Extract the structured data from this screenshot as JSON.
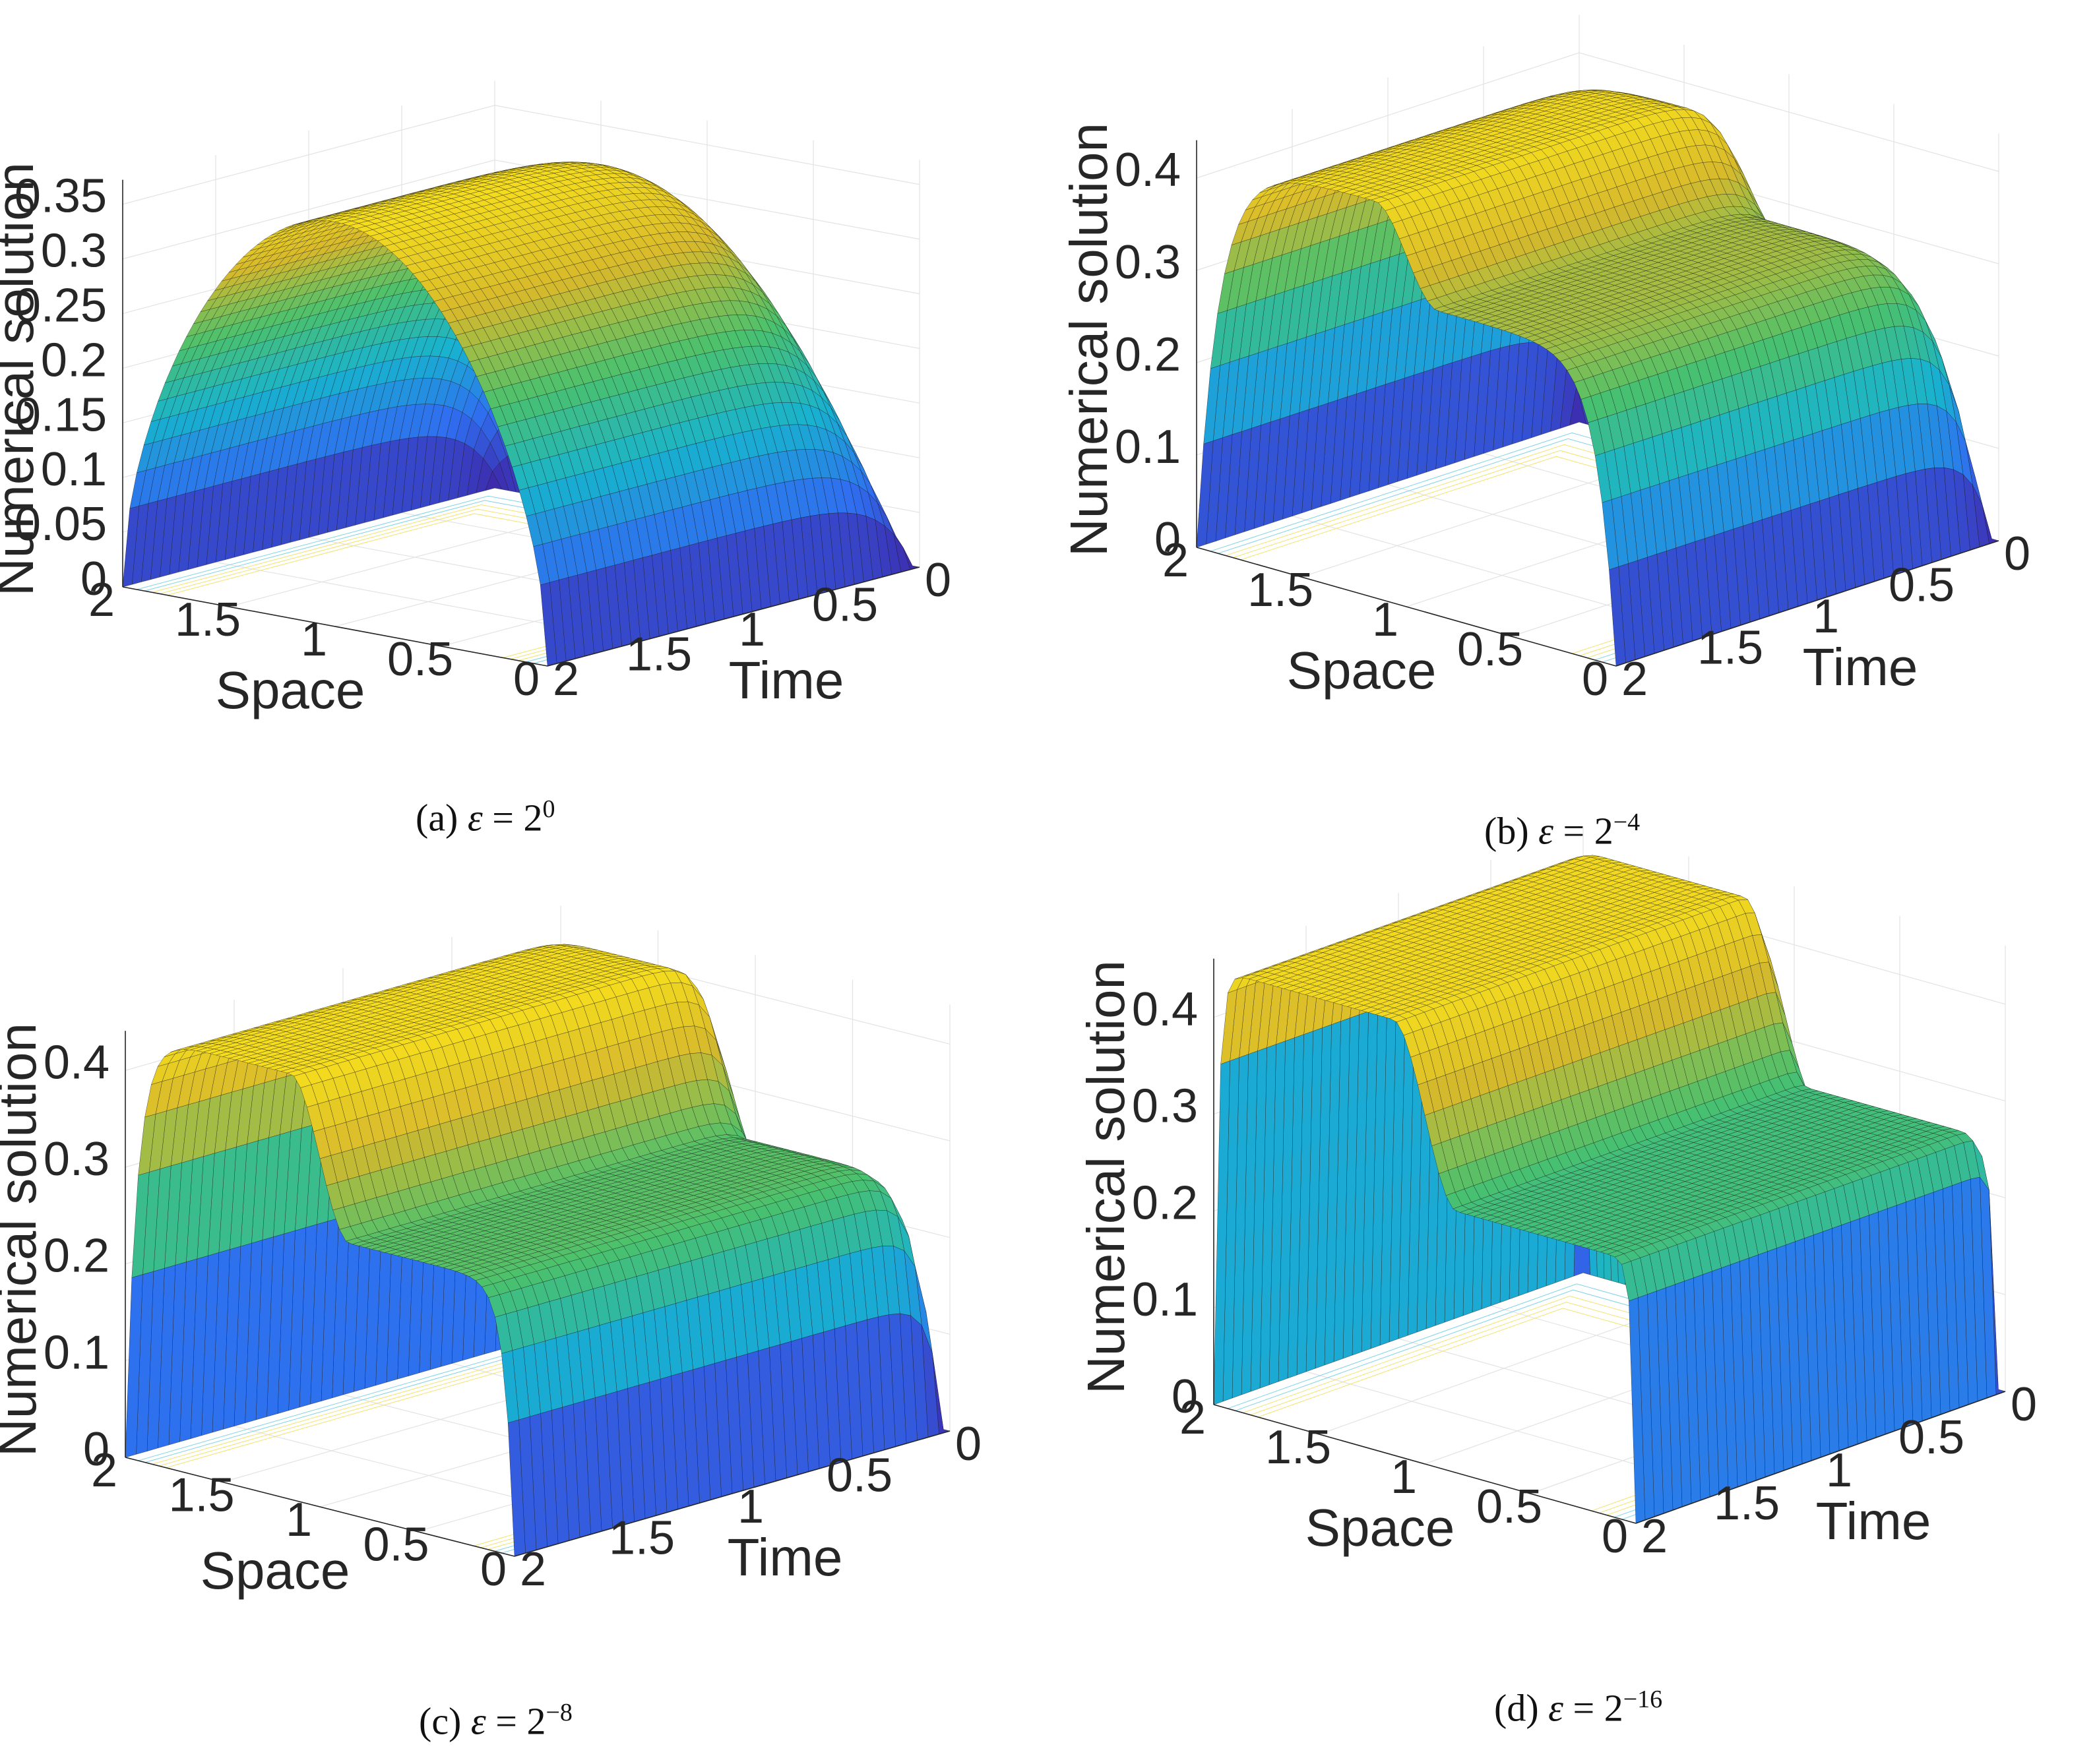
{
  "figure": {
    "panels": [
      {
        "caption_prefix": "(a)",
        "caption_symbol": "ε",
        "caption_eq": " = 2",
        "caption_exp": "0"
      },
      {
        "caption_prefix": "(b)",
        "caption_symbol": "ε",
        "caption_eq": " = 2",
        "caption_exp": "−4"
      },
      {
        "caption_prefix": "(c)",
        "caption_symbol": "ε",
        "caption_eq": " = 2",
        "caption_exp": "−8"
      },
      {
        "caption_prefix": "(d)",
        "caption_symbol": "ε",
        "caption_eq": " = 2",
        "caption_exp": "−16"
      }
    ]
  },
  "chart_data": [
    {
      "type": "surface",
      "xlabel": "Space",
      "ylabel": "Time",
      "zlabel": "Numerical solution",
      "x_ticks": [
        "0",
        "0.5",
        "1",
        "1.5",
        "2"
      ],
      "y_ticks": [
        "0",
        "0.5",
        "1",
        "1.5",
        "2"
      ],
      "z_ticks": [
        "0",
        "0.05",
        "0.1",
        "0.15",
        "0.2",
        "0.25",
        "0.3",
        "0.35"
      ],
      "xlim": [
        0,
        2
      ],
      "ylim": [
        0,
        2
      ],
      "zlim": [
        0,
        0.38
      ],
      "peak": 0.37,
      "plateau_x": 0.37,
      "plateau_y": 0.37,
      "colormap": [
        "#3e26a8",
        "#2f6ef0",
        "#18b2d0",
        "#4ac16d",
        "#d7b92c",
        "#f9e21b"
      ],
      "grid": true
    },
    {
      "type": "surface",
      "xlabel": "Space",
      "ylabel": "Time",
      "zlabel": "Numerical solution",
      "x_ticks": [
        "0",
        "0.5",
        "1",
        "1.5",
        "2"
      ],
      "y_ticks": [
        "0",
        "0.5",
        "1",
        "1.5",
        "2"
      ],
      "z_ticks": [
        "0",
        "0.1",
        "0.2",
        "0.3",
        "0.4"
      ],
      "xlim": [
        0,
        2
      ],
      "ylim": [
        0,
        2
      ],
      "zlim": [
        0,
        0.45
      ],
      "peak": 0.43,
      "plateau_x": 0.43,
      "plateau_y": 0.33,
      "colormap": [
        "#3e26a8",
        "#2f6ef0",
        "#18b2d0",
        "#4ac16d",
        "#d7b92c",
        "#f9e21b"
      ],
      "grid": true
    },
    {
      "type": "surface",
      "xlabel": "Space",
      "ylabel": "Time",
      "zlabel": "Numerical solution",
      "x_ticks": [
        "0",
        "0.5",
        "1",
        "1.5",
        "2"
      ],
      "y_ticks": [
        "0",
        "0.5",
        "1",
        "1.5",
        "2"
      ],
      "z_ticks": [
        "0",
        "0.1",
        "0.2",
        "0.3",
        "0.4"
      ],
      "xlim": [
        0,
        2
      ],
      "ylim": [
        0,
        2
      ],
      "zlim": [
        0,
        0.45
      ],
      "peak": 0.44,
      "plateau_x": 0.44,
      "plateau_y": 0.28,
      "colormap": [
        "#3e26a8",
        "#2f6ef0",
        "#18b2d0",
        "#4ac16d",
        "#d7b92c",
        "#f9e21b"
      ],
      "grid": true
    },
    {
      "type": "surface",
      "xlabel": "Space",
      "ylabel": "Time",
      "zlabel": "Numerical solution",
      "x_ticks": [
        "0",
        "0.5",
        "1",
        "1.5",
        "2"
      ],
      "y_ticks": [
        "0",
        "0.5",
        "1",
        "1.5",
        "2"
      ],
      "z_ticks": [
        "0",
        "0.1",
        "0.2",
        "0.3",
        "0.4"
      ],
      "xlim": [
        0,
        2
      ],
      "ylim": [
        0,
        2
      ],
      "zlim": [
        0,
        0.47
      ],
      "peak": 0.45,
      "plateau_x": 0.45,
      "plateau_y": 0.27,
      "colormap": [
        "#3e26a8",
        "#2f6ef0",
        "#18b2d0",
        "#4ac16d",
        "#d7b92c",
        "#f9e21b"
      ],
      "grid": true
    }
  ]
}
